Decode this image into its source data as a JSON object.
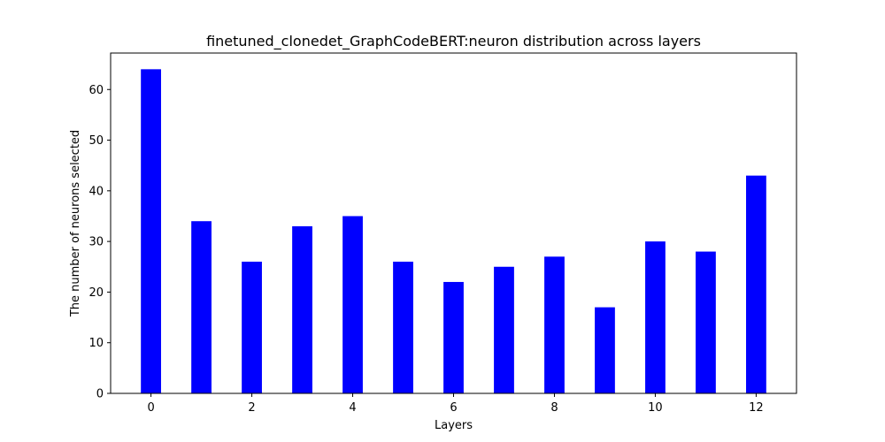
{
  "chart_data": {
    "type": "bar",
    "title": "finetuned_clonedet_GraphCodeBERT:neuron distribution across layers",
    "xlabel": "Layers",
    "ylabel": "The number of neurons selected",
    "categories": [
      0,
      1,
      2,
      3,
      4,
      5,
      6,
      7,
      8,
      9,
      10,
      11,
      12
    ],
    "values": [
      64,
      34,
      26,
      33,
      35,
      26,
      22,
      25,
      27,
      17,
      30,
      28,
      43
    ],
    "xlim": [
      -0.8,
      12.8
    ],
    "ylim": [
      0,
      67.2
    ],
    "xticks": [
      0,
      2,
      4,
      6,
      8,
      10,
      12
    ],
    "yticks": [
      0,
      10,
      20,
      30,
      40,
      50,
      60
    ],
    "bar_color": "#0000ff",
    "grid": false,
    "legend": "none"
  }
}
